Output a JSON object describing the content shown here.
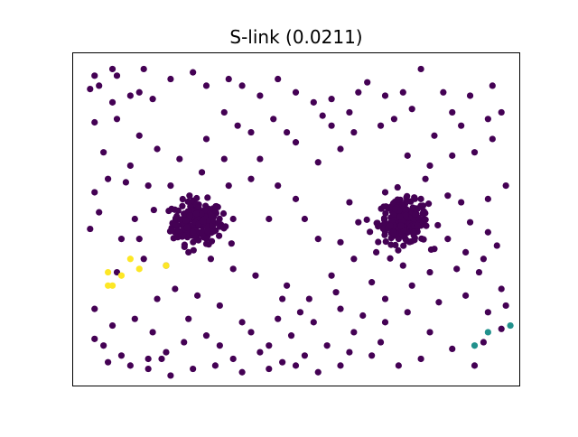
{
  "chart_data": {
    "type": "scatter",
    "title": "S-link (0.0211)",
    "xlabel": "",
    "ylabel": "",
    "xticks": [],
    "yticks": [],
    "xlim": [
      0,
      1
    ],
    "ylim": [
      0,
      1
    ],
    "grid": false,
    "legend": "none",
    "colors": {
      "cluster_0": "#440154",
      "cluster_1": "#21918c",
      "cluster_2": "#fde725"
    },
    "clusters": [
      {
        "cluster": 0,
        "color": "#440154",
        "points": [
          [
            0.05,
            0.93
          ],
          [
            0.06,
            0.9
          ],
          [
            0.1,
            0.93
          ],
          [
            0.04,
            0.89
          ],
          [
            0.09,
            0.85
          ],
          [
            0.13,
            0.87
          ],
          [
            0.15,
            0.88
          ],
          [
            0.18,
            0.86
          ],
          [
            0.22,
            0.92
          ],
          [
            0.27,
            0.94
          ],
          [
            0.3,
            0.9
          ],
          [
            0.35,
            0.92
          ],
          [
            0.38,
            0.9
          ],
          [
            0.42,
            0.87
          ],
          [
            0.46,
            0.92
          ],
          [
            0.5,
            0.88
          ],
          [
            0.54,
            0.85
          ],
          [
            0.58,
            0.86
          ],
          [
            0.62,
            0.82
          ],
          [
            0.66,
            0.91
          ],
          [
            0.7,
            0.87
          ],
          [
            0.74,
            0.88
          ],
          [
            0.78,
            0.95
          ],
          [
            0.83,
            0.88
          ],
          [
            0.89,
            0.87
          ],
          [
            0.93,
            0.8
          ],
          [
            0.94,
            0.74
          ],
          [
            0.9,
            0.7
          ],
          [
            0.85,
            0.69
          ],
          [
            0.8,
            0.66
          ],
          [
            0.75,
            0.69
          ],
          [
            0.69,
            0.78
          ],
          [
            0.63,
            0.76
          ],
          [
            0.6,
            0.71
          ],
          [
            0.55,
            0.67
          ],
          [
            0.5,
            0.73
          ],
          [
            0.45,
            0.8
          ],
          [
            0.4,
            0.76
          ],
          [
            0.34,
            0.82
          ],
          [
            0.3,
            0.74
          ],
          [
            0.24,
            0.68
          ],
          [
            0.19,
            0.71
          ],
          [
            0.15,
            0.75
          ],
          [
            0.1,
            0.8
          ],
          [
            0.05,
            0.79
          ],
          [
            0.07,
            0.7
          ],
          [
            0.12,
            0.61
          ],
          [
            0.06,
            0.52
          ],
          [
            0.04,
            0.47
          ],
          [
            0.11,
            0.44
          ],
          [
            0.15,
            0.44
          ],
          [
            0.23,
            0.46
          ],
          [
            0.27,
            0.55
          ],
          [
            0.35,
            0.6
          ],
          [
            0.4,
            0.62
          ],
          [
            0.46,
            0.6
          ],
          [
            0.5,
            0.56
          ],
          [
            0.55,
            0.44
          ],
          [
            0.6,
            0.43
          ],
          [
            0.64,
            0.49
          ],
          [
            0.72,
            0.53
          ],
          [
            0.79,
            0.62
          ],
          [
            0.84,
            0.57
          ],
          [
            0.89,
            0.49
          ],
          [
            0.93,
            0.46
          ],
          [
            0.95,
            0.42
          ],
          [
            0.92,
            0.38
          ],
          [
            0.86,
            0.35
          ],
          [
            0.8,
            0.34
          ],
          [
            0.76,
            0.3
          ],
          [
            0.7,
            0.26
          ],
          [
            0.65,
            0.21
          ],
          [
            0.6,
            0.23
          ],
          [
            0.54,
            0.19
          ],
          [
            0.49,
            0.15
          ],
          [
            0.44,
            0.12
          ],
          [
            0.38,
            0.19
          ],
          [
            0.33,
            0.24
          ],
          [
            0.28,
            0.27
          ],
          [
            0.23,
            0.29
          ],
          [
            0.19,
            0.26
          ],
          [
            0.14,
            0.2
          ],
          [
            0.09,
            0.18
          ],
          [
            0.05,
            0.14
          ],
          [
            0.08,
            0.07
          ],
          [
            0.13,
            0.06
          ],
          [
            0.17,
            0.08
          ],
          [
            0.21,
            0.1
          ],
          [
            0.25,
            0.13
          ],
          [
            0.3,
            0.15
          ],
          [
            0.36,
            0.08
          ],
          [
            0.42,
            0.1
          ],
          [
            0.47,
            0.07
          ],
          [
            0.52,
            0.09
          ],
          [
            0.57,
            0.12
          ],
          [
            0.63,
            0.16
          ],
          [
            0.7,
            0.19
          ],
          [
            0.75,
            0.22
          ],
          [
            0.82,
            0.25
          ],
          [
            0.88,
            0.27
          ],
          [
            0.93,
            0.22
          ],
          [
            0.96,
            0.17
          ],
          [
            0.92,
            0.13
          ],
          [
            0.85,
            0.11
          ],
          [
            0.78,
            0.08
          ],
          [
            0.73,
            0.06
          ],
          [
            0.67,
            0.09
          ],
          [
            0.6,
            0.06
          ],
          [
            0.55,
            0.04
          ],
          [
            0.5,
            0.06
          ],
          [
            0.44,
            0.05
          ],
          [
            0.38,
            0.04
          ],
          [
            0.32,
            0.06
          ],
          [
            0.27,
            0.05
          ],
          [
            0.22,
            0.03
          ],
          [
            0.17,
            0.05
          ],
          [
            0.11,
            0.09
          ],
          [
            0.07,
            0.12
          ],
          [
            0.1,
            0.34
          ],
          [
            0.16,
            0.38
          ],
          [
            0.21,
            0.36
          ],
          [
            0.26,
            0.4
          ],
          [
            0.31,
            0.38
          ],
          [
            0.36,
            0.35
          ],
          [
            0.41,
            0.33
          ],
          [
            0.48,
            0.3
          ],
          [
            0.53,
            0.26
          ],
          [
            0.58,
            0.33
          ],
          [
            0.63,
            0.38
          ],
          [
            0.68,
            0.4
          ],
          [
            0.73,
            0.44
          ],
          [
            0.78,
            0.48
          ],
          [
            0.84,
            0.44
          ],
          [
            0.88,
            0.4
          ],
          [
            0.91,
            0.34
          ],
          [
            0.96,
            0.29
          ],
          [
            0.97,
            0.24
          ],
          [
            0.94,
            0.9
          ],
          [
            0.96,
            0.82
          ],
          [
            0.85,
            0.82
          ],
          [
            0.72,
            0.8
          ],
          [
            0.58,
            0.78
          ],
          [
            0.48,
            0.76
          ],
          [
            0.42,
            0.68
          ],
          [
            0.34,
            0.68
          ],
          [
            0.29,
            0.64
          ],
          [
            0.22,
            0.6
          ],
          [
            0.17,
            0.6
          ],
          [
            0.13,
            0.66
          ],
          [
            0.08,
            0.62
          ],
          [
            0.05,
            0.58
          ],
          [
            0.14,
            0.5
          ],
          [
            0.36,
            0.5
          ],
          [
            0.44,
            0.5
          ],
          [
            0.52,
            0.5
          ],
          [
            0.62,
            0.55
          ],
          [
            0.7,
            0.58
          ],
          [
            0.78,
            0.56
          ],
          [
            0.87,
            0.55
          ],
          [
            0.93,
            0.56
          ],
          [
            0.97,
            0.6
          ],
          [
            0.2,
            0.08
          ],
          [
            0.33,
            0.12
          ],
          [
            0.4,
            0.16
          ],
          [
            0.46,
            0.2
          ],
          [
            0.51,
            0.22
          ],
          [
            0.62,
            0.1
          ],
          [
            0.69,
            0.13
          ],
          [
            0.8,
            0.16
          ],
          [
            0.9,
            0.06
          ],
          [
            0.05,
            0.23
          ],
          [
            0.18,
            0.16
          ],
          [
            0.26,
            0.2
          ],
          [
            0.47,
            0.26
          ],
          [
            0.59,
            0.28
          ],
          [
            0.67,
            0.31
          ],
          [
            0.74,
            0.36
          ],
          [
            0.81,
            0.41
          ],
          [
            0.09,
            0.95
          ],
          [
            0.16,
            0.95
          ],
          [
            0.37,
            0.78
          ],
          [
            0.56,
            0.81
          ],
          [
            0.64,
            0.88
          ],
          [
            0.76,
            0.83
          ],
          [
            0.81,
            0.75
          ],
          [
            0.87,
            0.78
          ]
        ]
      },
      {
        "cluster": 0,
        "color": "#440154",
        "dense_blob_centers": [
          [
            0.28,
            0.49
          ],
          [
            0.74,
            0.49
          ]
        ],
        "dense_blob_note": ""
      },
      {
        "cluster": 1,
        "color": "#21918c",
        "points": [
          [
            0.9,
            0.12
          ],
          [
            0.93,
            0.16
          ],
          [
            0.98,
            0.18
          ]
        ]
      },
      {
        "cluster": 2,
        "color": "#fde725",
        "points": [
          [
            0.08,
            0.34
          ],
          [
            0.11,
            0.33
          ],
          [
            0.13,
            0.38
          ],
          [
            0.15,
            0.35
          ],
          [
            0.21,
            0.36
          ],
          [
            0.09,
            0.3
          ],
          [
            0.08,
            0.3
          ]
        ]
      }
    ]
  }
}
